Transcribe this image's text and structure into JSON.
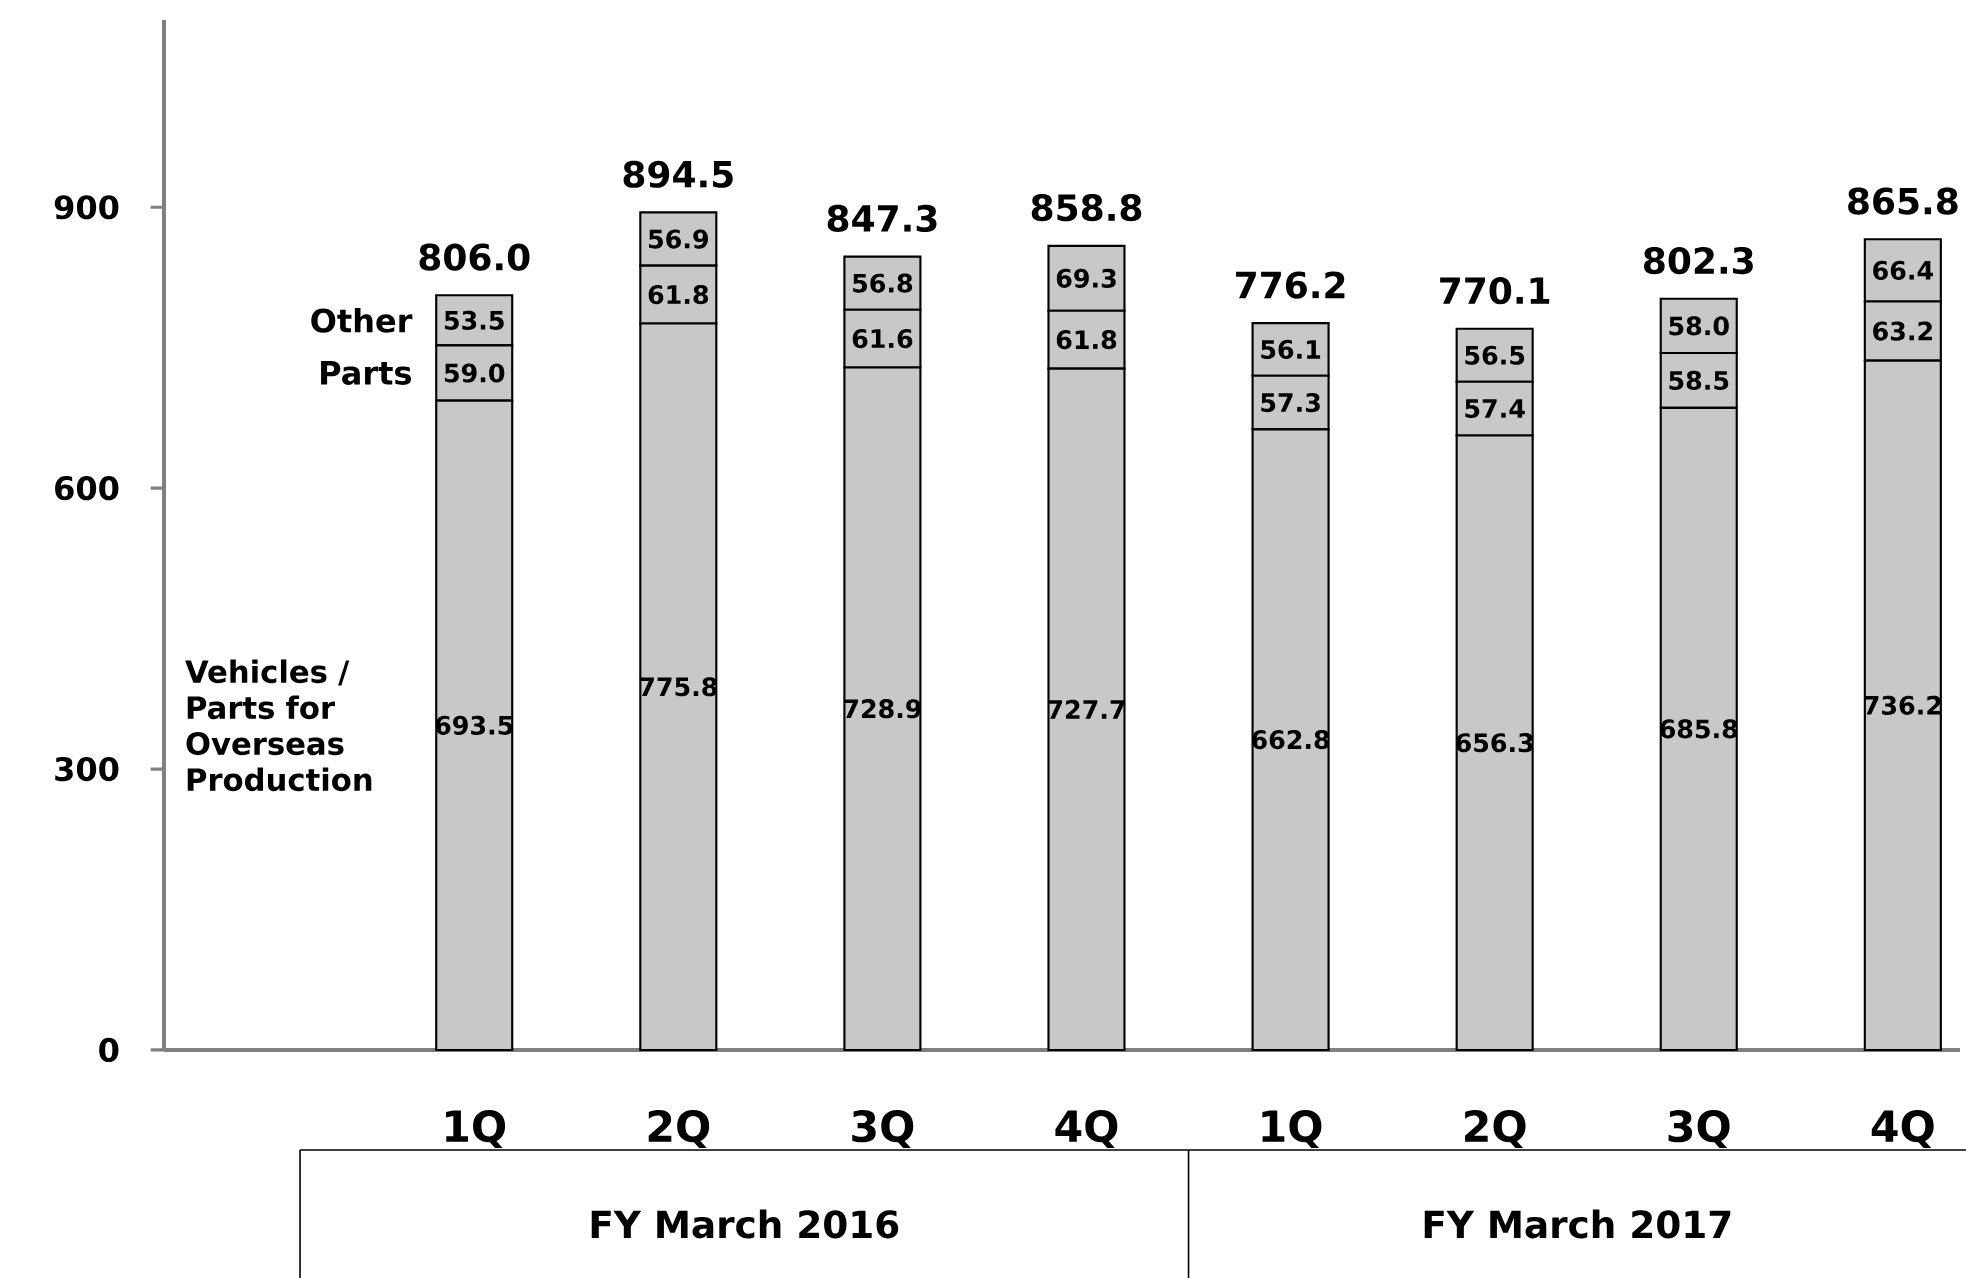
{
  "chart_data": {
    "type": "bar",
    "stacked": true,
    "categories": [
      "1Q",
      "2Q",
      "3Q",
      "4Q",
      "1Q",
      "2Q",
      "3Q",
      "4Q"
    ],
    "series": [
      {
        "name": "Vehicles / Parts for Overseas Production",
        "color": "#c8c8c8",
        "values": [
          693.5,
          775.8,
          728.9,
          727.7,
          662.8,
          656.3,
          685.8,
          736.2
        ],
        "value_labels": [
          "693.5",
          "775.8",
          "728.9",
          "727.7",
          "662.8",
          "656.3",
          "685.8",
          "736.2"
        ]
      },
      {
        "name": "Parts",
        "color": "#c8c8c8",
        "values": [
          59.0,
          61.8,
          61.6,
          61.8,
          57.3,
          57.4,
          58.5,
          63.2
        ],
        "value_labels": [
          "59.0",
          "61.8",
          "61.6",
          "61.8",
          "57.3",
          "57.4",
          "58.5",
          "63.2"
        ]
      },
      {
        "name": "Other",
        "color": "#c8c8c8",
        "values": [
          53.5,
          56.9,
          56.8,
          69.3,
          56.1,
          56.5,
          58.0,
          66.4
        ],
        "value_labels": [
          "53.5",
          "56.9",
          "56.8",
          "69.3",
          "56.1",
          "56.5",
          "58.0",
          "66.4"
        ]
      }
    ],
    "totals": [
      "806.0",
      "894.5",
      "847.3",
      "858.8",
      "776.2",
      "770.1",
      "802.3",
      "865.8"
    ],
    "ylim": [
      0,
      1100
    ],
    "yticks": [
      0,
      300,
      600,
      900
    ],
    "annotations": [
      "FY March 2016",
      "FY March 2017"
    ]
  }
}
